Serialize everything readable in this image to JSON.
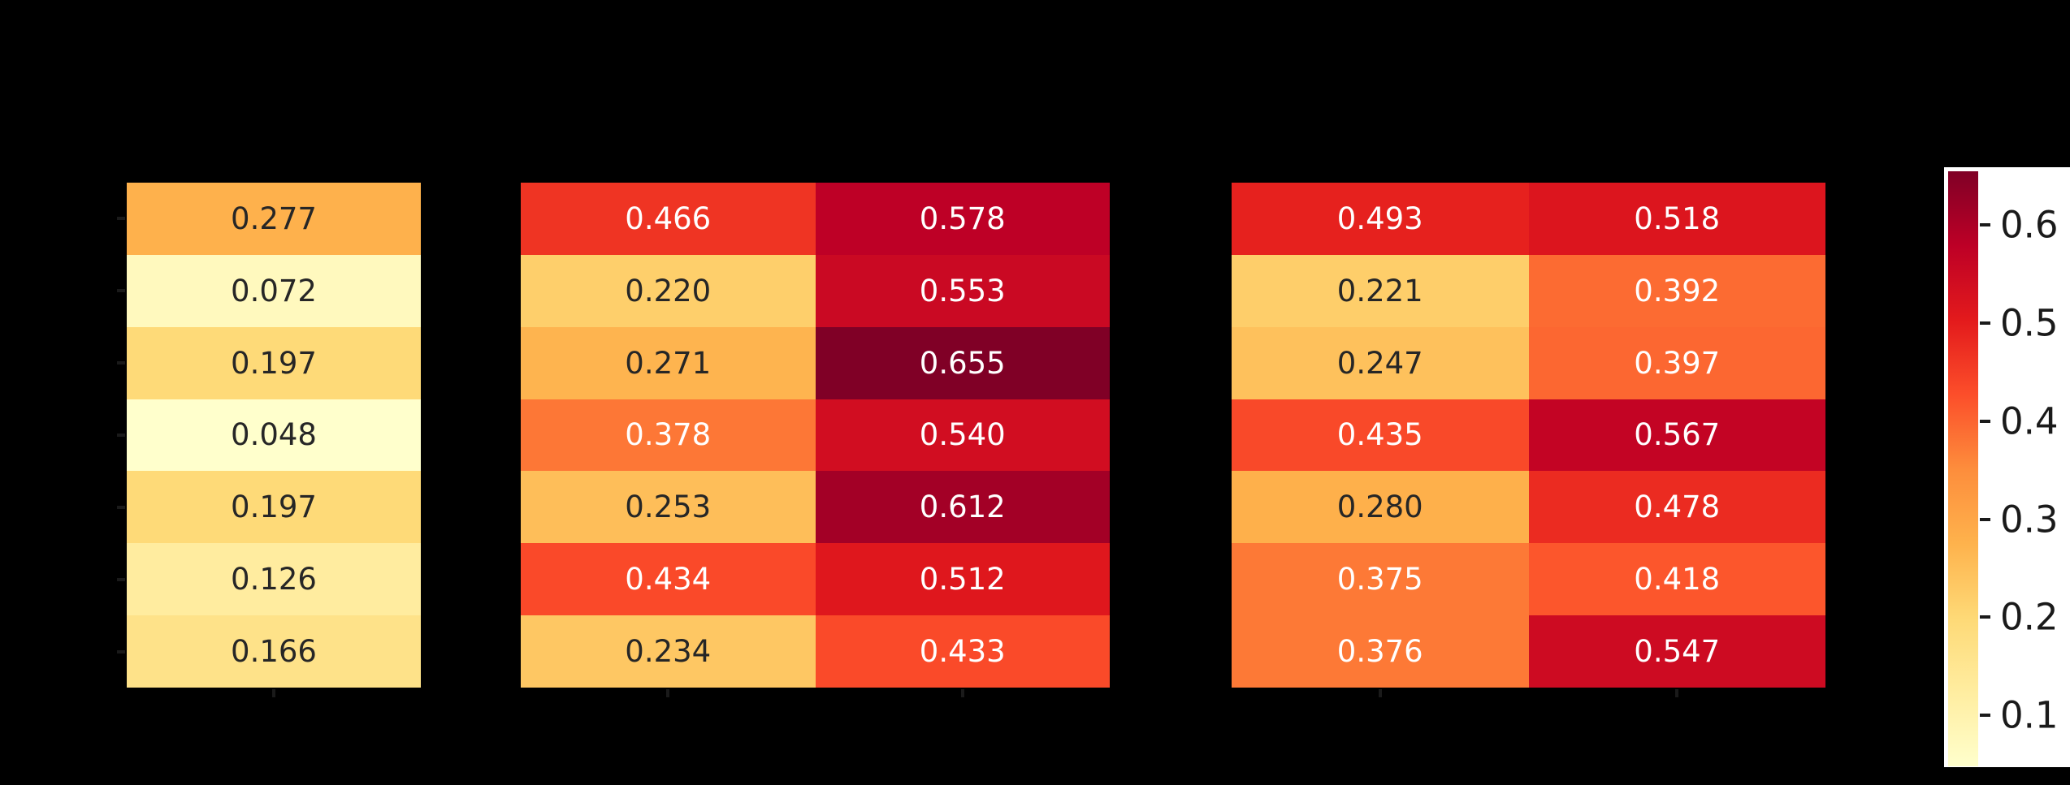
{
  "figure": {
    "background_color": "#000000"
  },
  "chart_data": [
    {
      "type": "heatmap",
      "name": "heatmap-left",
      "rows": 7,
      "cols": 1,
      "values": [
        [
          0.277
        ],
        [
          0.072
        ],
        [
          0.197
        ],
        [
          0.048
        ],
        [
          0.197
        ],
        [
          0.126
        ],
        [
          0.166
        ]
      ],
      "annotated": true,
      "annot_decimals": 3
    },
    {
      "type": "heatmap",
      "name": "heatmap-middle",
      "rows": 7,
      "cols": 2,
      "values": [
        [
          0.466,
          0.578
        ],
        [
          0.22,
          0.553
        ],
        [
          0.271,
          0.655
        ],
        [
          0.378,
          0.54
        ],
        [
          0.253,
          0.612
        ],
        [
          0.434,
          0.512
        ],
        [
          0.234,
          0.433
        ]
      ],
      "annotated": true,
      "annot_decimals": 3
    },
    {
      "type": "heatmap",
      "name": "heatmap-right",
      "rows": 7,
      "cols": 2,
      "values": [
        [
          0.493,
          0.518
        ],
        [
          0.221,
          0.392
        ],
        [
          0.247,
          0.397
        ],
        [
          0.435,
          0.567
        ],
        [
          0.28,
          0.478
        ],
        [
          0.375,
          0.418
        ],
        [
          0.376,
          0.547
        ]
      ],
      "annotated": true,
      "annot_decimals": 3
    }
  ],
  "colorbar": {
    "position": "right",
    "orientation": "vertical",
    "vmin": 0.048,
    "vmax": 0.655,
    "tick_labels": [
      "0.6",
      "0.5",
      "0.4",
      "0.3",
      "0.2",
      "0.1"
    ],
    "tick_values": [
      0.6,
      0.5,
      0.4,
      0.3,
      0.2,
      0.1
    ],
    "panel_background": "#ffffff",
    "tick_color": "#1a1a1a"
  },
  "colormap": {
    "name": "YlOrRd",
    "stops": [
      "#ffffcc",
      "#ffeda0",
      "#fed976",
      "#feb24c",
      "#fd8d3c",
      "#fc4e2a",
      "#e31a1c",
      "#bd0026",
      "#800026"
    ]
  },
  "style": {
    "annot_text_dark": "#262626",
    "annot_text_light": "#ffffff",
    "luminance_threshold": 0.408
  }
}
